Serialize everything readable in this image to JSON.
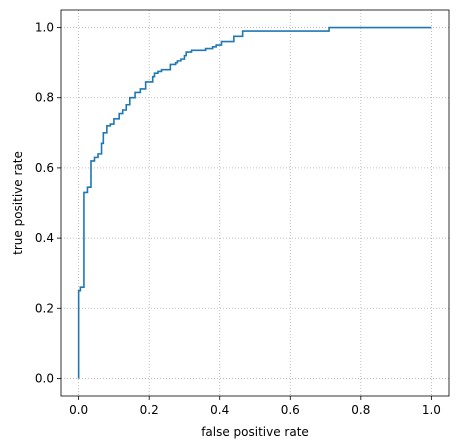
{
  "chart_data": {
    "type": "line",
    "xlabel": "false positive rate",
    "ylabel": "true positive rate",
    "xlim": [
      -0.05,
      1.05
    ],
    "ylim": [
      -0.05,
      1.05
    ],
    "xticks": [
      0.0,
      0.2,
      0.4,
      0.6,
      0.8,
      1.0
    ],
    "yticks": [
      0.0,
      0.2,
      0.4,
      0.6,
      0.8,
      1.0
    ],
    "xtick_labels": [
      "0.0",
      "0.2",
      "0.4",
      "0.6",
      "0.8",
      "1.0"
    ],
    "ytick_labels": [
      "0.0",
      "0.2",
      "0.4",
      "0.6",
      "0.8",
      "1.0"
    ],
    "grid": true,
    "grid_style": "dotted",
    "line_color": "#1f77b4",
    "grid_color": "#b0b0b0",
    "series": [
      {
        "x": [
          0.0,
          0.0,
          0.005,
          0.005,
          0.015,
          0.015,
          0.025,
          0.025,
          0.035,
          0.035,
          0.045,
          0.045,
          0.055,
          0.055,
          0.065,
          0.065,
          0.07,
          0.07,
          0.08,
          0.08,
          0.09,
          0.09,
          0.1,
          0.1,
          0.115,
          0.115,
          0.125,
          0.125,
          0.135,
          0.135,
          0.145,
          0.145,
          0.16,
          0.16,
          0.175,
          0.175,
          0.19,
          0.19,
          0.21,
          0.21,
          0.215,
          0.215,
          0.225,
          0.225,
          0.235,
          0.235,
          0.26,
          0.26,
          0.275,
          0.275,
          0.28,
          0.28,
          0.29,
          0.29,
          0.3,
          0.3,
          0.305,
          0.305,
          0.32,
          0.32,
          0.36,
          0.36,
          0.38,
          0.38,
          0.39,
          0.39,
          0.405,
          0.405,
          0.44,
          0.44,
          0.465,
          0.465,
          0.71,
          0.71,
          1.0
        ],
        "y": [
          0.0,
          0.25,
          0.25,
          0.26,
          0.26,
          0.53,
          0.53,
          0.545,
          0.545,
          0.62,
          0.62,
          0.63,
          0.63,
          0.64,
          0.64,
          0.67,
          0.67,
          0.7,
          0.7,
          0.72,
          0.72,
          0.725,
          0.725,
          0.74,
          0.74,
          0.755,
          0.755,
          0.765,
          0.765,
          0.78,
          0.78,
          0.8,
          0.8,
          0.815,
          0.815,
          0.825,
          0.825,
          0.845,
          0.845,
          0.86,
          0.86,
          0.87,
          0.87,
          0.875,
          0.875,
          0.88,
          0.88,
          0.895,
          0.895,
          0.9,
          0.9,
          0.905,
          0.905,
          0.91,
          0.91,
          0.92,
          0.92,
          0.93,
          0.93,
          0.935,
          0.935,
          0.94,
          0.94,
          0.945,
          0.945,
          0.95,
          0.95,
          0.96,
          0.96,
          0.975,
          0.975,
          0.99,
          0.99,
          1.0,
          1.0
        ]
      }
    ]
  }
}
